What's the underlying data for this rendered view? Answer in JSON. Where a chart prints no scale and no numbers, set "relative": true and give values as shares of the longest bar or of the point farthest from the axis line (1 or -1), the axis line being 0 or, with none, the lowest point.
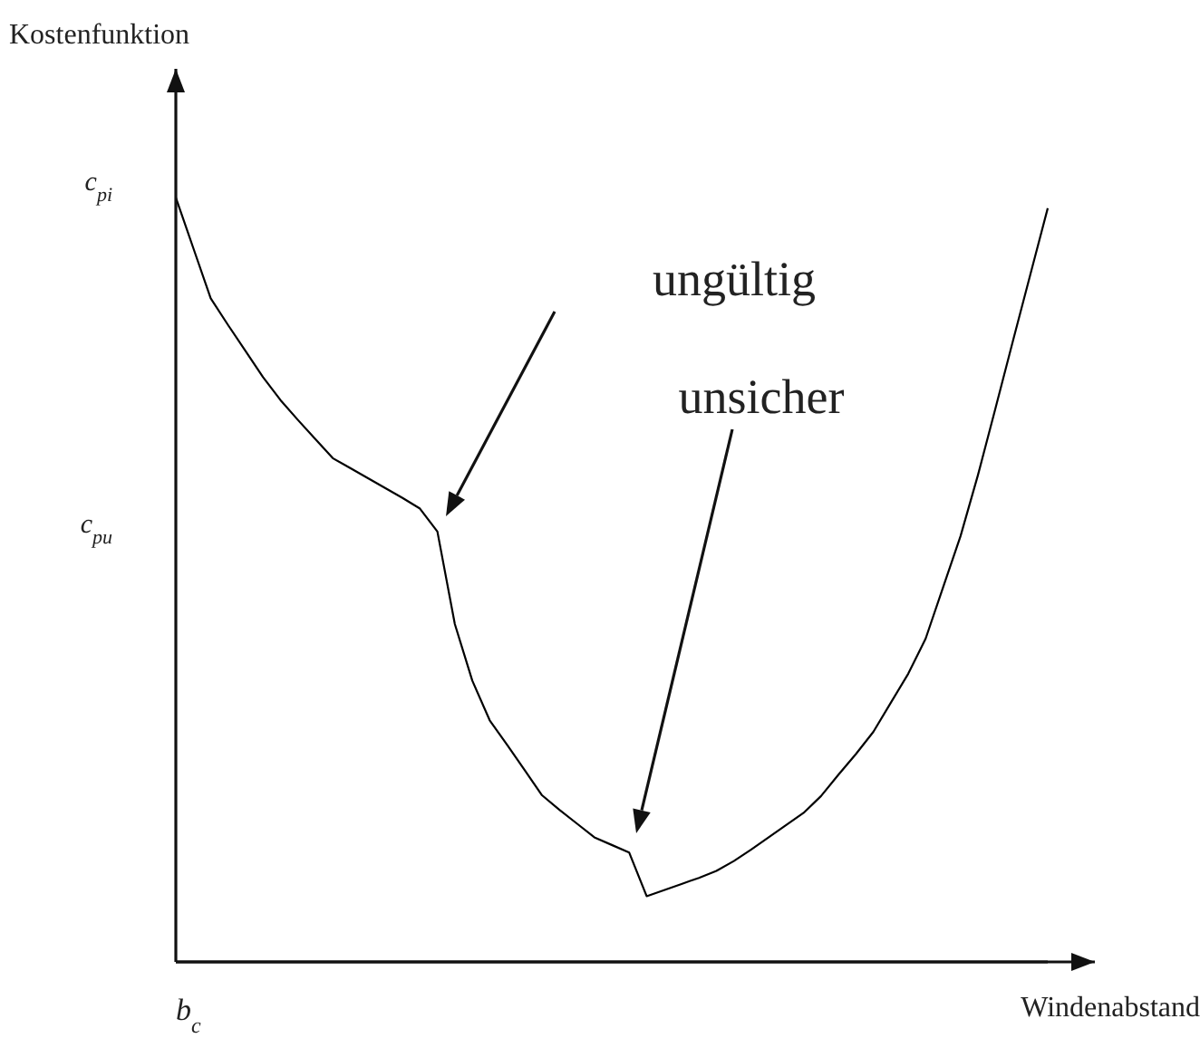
{
  "chart_data": {
    "type": "line",
    "xlabel": "Windenabstand",
    "relative": true,
    "categories": [
      null,
      null,
      null,
      null,
      null,
      null,
      null,
      null,
      null,
      null,
      null,
      null,
      null,
      null,
      null,
      null,
      null,
      null,
      null,
      null,
      null,
      null,
      null,
      null,
      null,
      null,
      null,
      null,
      null,
      null,
      null,
      null,
      null,
      null,
      null,
      null,
      null,
      null,
      null,
      null,
      null,
      null,
      null,
      null,
      null,
      null,
      null,
      null,
      null,
      null,
      null
    ],
    "series": [
      {
        "color": "#000000",
        "values": [
          1,
          0.934,
          0.868,
          0.833,
          0.799,
          0.765,
          0.735,
          0.709,
          0.684,
          0.659,
          0.646,
          0.633,
          0.62,
          0.607,
          0.593,
          0.563,
          0.442,
          0.368,
          0.316,
          0.284,
          0.251,
          0.218,
          0.199,
          0.181,
          0.163,
          0.153,
          0.143,
          0.086,
          0.094,
          0.102,
          0.11,
          0.119,
          0.132,
          0.147,
          0.163,
          0.179,
          0.195,
          0.217,
          0.245,
          0.272,
          0.301,
          0.339,
          0.377,
          0.423,
          0.49,
          0.557,
          0.637,
          0.724,
          0.812,
          0.899,
          0.986
        ]
      }
    ],
    "annotations": [
      "ungültig",
      "unsicher",
      "c$_{pi}$",
      "c$_{pu}$",
      "b$_{c}$",
      "Kostenfunktion"
    ],
    "grid": false,
    "legend": false,
    "marker": "none",
    "line_style": "solid"
  }
}
